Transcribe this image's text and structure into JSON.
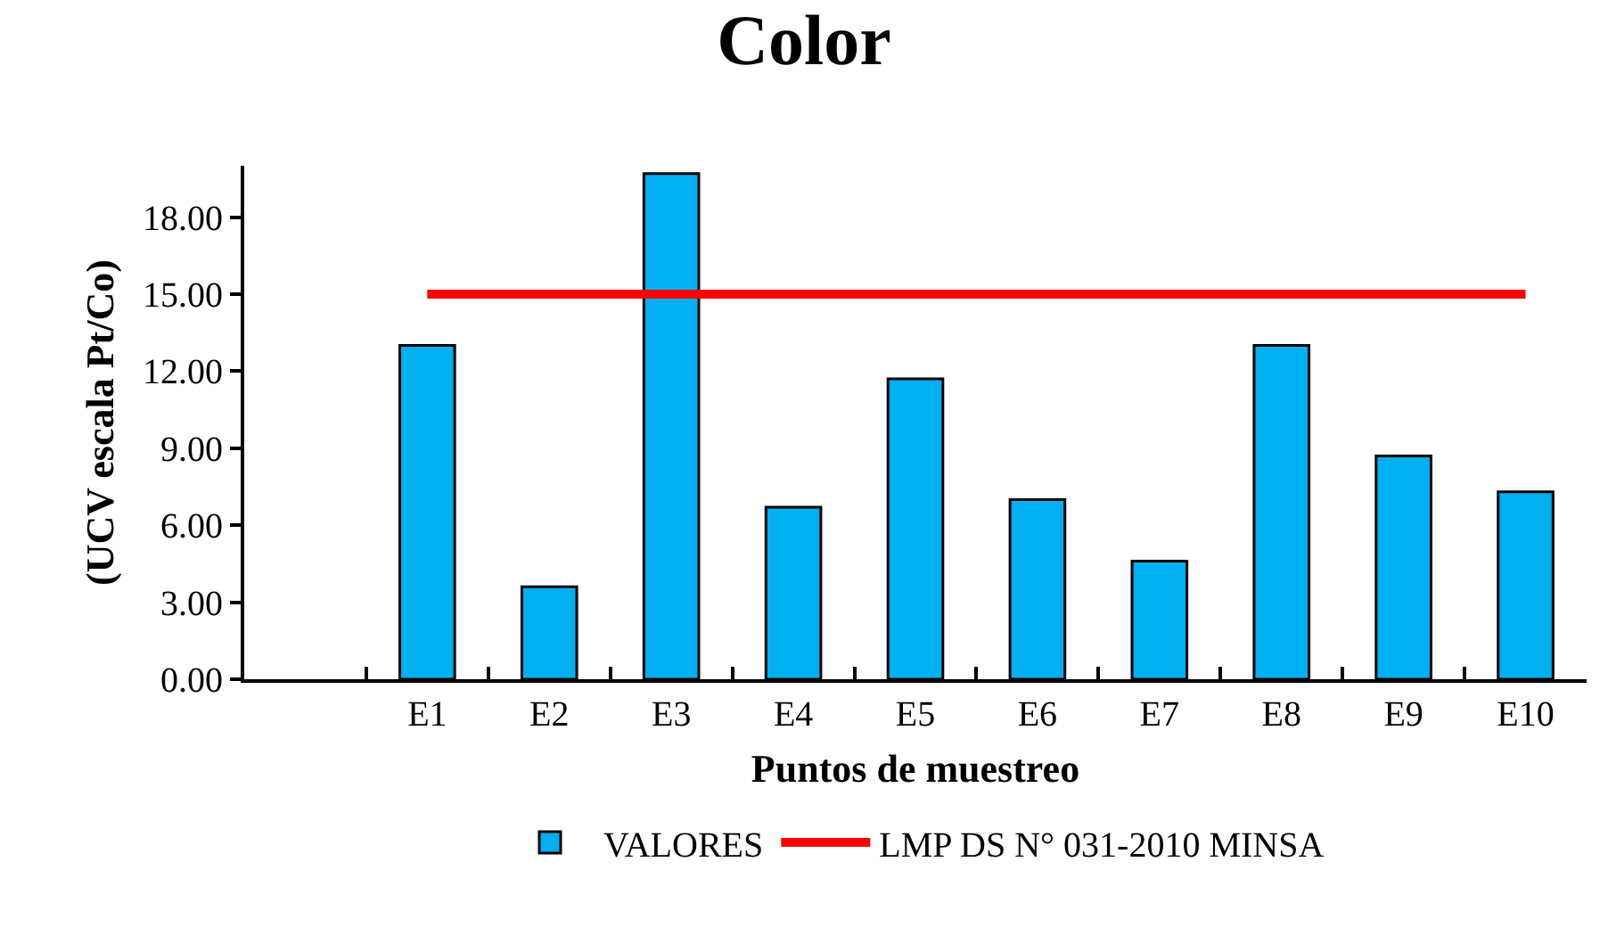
{
  "chart_data": {
    "type": "bar",
    "title": "Color",
    "xlabel": "Puntos de muestreo",
    "ylabel": "(UCV escala Pt/Co)",
    "categories": [
      null,
      "E1",
      "E2",
      "E3",
      "E4",
      "E5",
      "E6",
      "E7",
      "E8",
      "E9",
      "E10"
    ],
    "series": [
      {
        "name": "VALORES",
        "color": "#00b0f0",
        "values": [
          null,
          13.0,
          3.6,
          19.7,
          6.7,
          11.7,
          7.0,
          4.6,
          13.0,
          8.7,
          7.3
        ]
      },
      {
        "name": "LMP DS N° 031-2010 MINSA",
        "type": "line",
        "color": "#ff0000",
        "values": [
          null,
          15,
          15,
          15,
          15,
          15,
          15,
          15,
          15,
          15,
          15
        ]
      }
    ],
    "ylim": [
      0,
      20
    ],
    "yticks": [
      {
        "value": 0,
        "label": "0.00"
      },
      {
        "value": 3,
        "label": "3.00"
      },
      {
        "value": 6,
        "label": "6.00"
      },
      {
        "value": 9,
        "label": "9.00"
      },
      {
        "value": 12,
        "label": "12.00"
      },
      {
        "value": 15,
        "label": "15.00"
      },
      {
        "value": 18,
        "label": "18.00"
      }
    ],
    "grid": false,
    "legend": "bottom"
  }
}
